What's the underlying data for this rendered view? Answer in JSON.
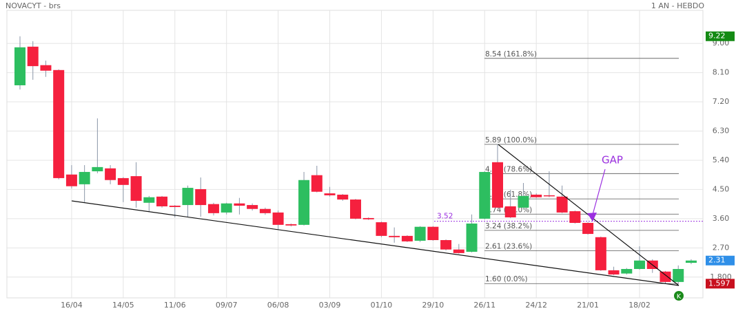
{
  "header": {
    "title": "NOVACYT - brs",
    "period": "1 AN - HEBDO"
  },
  "chart_data": {
    "type": "candlestick",
    "categories": [
      null,
      null,
      null,
      null,
      "16/04",
      null,
      null,
      null,
      "14/05",
      null,
      null,
      null,
      "11/06",
      null,
      null,
      null,
      "09/07",
      null,
      null,
      null,
      "06/08",
      null,
      null,
      null,
      "03/09",
      null,
      null,
      null,
      "01/10",
      null,
      null,
      null,
      "29/10",
      null,
      null,
      null,
      "26/11",
      null,
      null,
      null,
      "24/12",
      null,
      null,
      null,
      "21/01",
      null,
      null,
      null,
      "18/02",
      null,
      null,
      null,
      null
    ],
    "open": [
      7.71,
      8.9,
      8.33,
      8.18,
      4.96,
      4.66,
      5.06,
      5.15,
      4.85,
      4.91,
      4.09,
      4.28,
      4.0,
      4.02,
      4.51,
      4.05,
      3.79,
      4.07,
      4.02,
      3.9,
      3.79,
      3.43,
      3.41,
      4.94,
      4.38,
      4.34,
      4.19,
      3.62,
      3.49,
      3.07,
      3.07,
      2.92,
      3.35,
      2.94,
      2.65,
      2.58,
      3.6,
      5.34,
      3.98,
      3.94,
      4.34,
      4.32,
      4.28,
      3.83,
      3.47,
      3.03,
      2.01,
      1.91,
      2.05,
      2.31,
      1.97,
      1.65,
      2.24
    ],
    "high": [
      9.22,
      9.07,
      8.47,
      8.2,
      5.25,
      5.25,
      6.69,
      5.25,
      4.88,
      5.34,
      4.3,
      4.3,
      4.02,
      4.62,
      4.87,
      4.09,
      4.09,
      4.24,
      4.07,
      3.94,
      3.85,
      3.45,
      5.04,
      5.23,
      4.58,
      4.36,
      4.21,
      3.64,
      3.51,
      3.33,
      3.09,
      3.37,
      3.37,
      2.96,
      2.82,
      3.73,
      5.06,
      5.89,
      4.49,
      4.7,
      4.38,
      5.06,
      4.62,
      3.85,
      3.49,
      3.05,
      2.12,
      2.08,
      2.75,
      2.35,
      1.99,
      2.16,
      2.35
    ],
    "low": [
      7.58,
      7.88,
      7.97,
      4.81,
      4.53,
      4.11,
      5.0,
      4.66,
      4.11,
      3.94,
      3.81,
      3.94,
      3.64,
      3.66,
      3.66,
      3.7,
      3.73,
      3.73,
      3.85,
      3.72,
      3.26,
      3.36,
      3.39,
      4.41,
      4.28,
      4.15,
      3.58,
      3.56,
      3.03,
      2.86,
      2.88,
      2.88,
      2.92,
      2.62,
      2.52,
      2.56,
      3.58,
      3.92,
      3.62,
      3.9,
      4.24,
      4.26,
      3.77,
      3.45,
      3.11,
      1.99,
      1.86,
      1.88,
      2.03,
      1.93,
      1.6,
      1.6,
      2.2
    ],
    "close": [
      8.88,
      8.3,
      8.16,
      4.85,
      4.6,
      5.04,
      5.19,
      4.79,
      4.64,
      4.15,
      4.26,
      3.98,
      3.96,
      4.55,
      4.02,
      3.77,
      4.07,
      4.0,
      3.9,
      3.77,
      3.41,
      3.39,
      4.79,
      4.43,
      4.32,
      4.19,
      3.6,
      3.58,
      3.07,
      3.03,
      2.9,
      3.35,
      2.94,
      2.65,
      2.54,
      3.45,
      5.04,
      3.94,
      3.64,
      4.3,
      4.26,
      4.3,
      3.79,
      3.47,
      3.13,
      2.01,
      1.88,
      2.05,
      2.31,
      2.05,
      1.65,
      2.05,
      2.31
    ],
    "up_color": "#2dbe60",
    "down_color": "#f5203e",
    "ylim": [
      1.16,
      10.02
    ],
    "yticks": [
      {
        "value": 9,
        "label": "9.00"
      },
      {
        "value": 8.1,
        "label": "8.10"
      },
      {
        "value": 7.2,
        "label": "7.20"
      },
      {
        "value": 6.3,
        "label": "6.30"
      },
      {
        "value": 5.4,
        "label": "5.40"
      },
      {
        "value": 4.5,
        "label": "4.50"
      },
      {
        "value": 3.6,
        "label": "3.60"
      },
      {
        "value": 2.7,
        "label": "2.70"
      },
      {
        "value": 1.8,
        "label": "1.800"
      }
    ],
    "grid": true,
    "price_tags": [
      {
        "value": 9.22,
        "color": "#148a14"
      },
      {
        "value": 2.31,
        "color": "#2f8fe8"
      },
      {
        "value": 1.597,
        "color": "#c8101e"
      }
    ],
    "fibonacci": [
      {
        "value": 8.54,
        "label": "8.54  (161.8%)"
      },
      {
        "value": 5.89,
        "label": "5.89  (100.0%)"
      },
      {
        "value": 4.99,
        "label": "4.99  (78.6%)"
      },
      {
        "value": 4.21,
        "label": "4.21  (61.8%)"
      },
      {
        "value": 3.74,
        "label": "3.74  (50.0%)"
      },
      {
        "value": 3.24,
        "label": "3.24  (38.2%)"
      },
      {
        "value": 2.61,
        "label": "2.61  (23.6%)"
      },
      {
        "value": 1.6,
        "label": "1.60  (0.0%)"
      }
    ],
    "gap_level": 3.52,
    "gap_label": "GAP",
    "marker_label": "K"
  }
}
